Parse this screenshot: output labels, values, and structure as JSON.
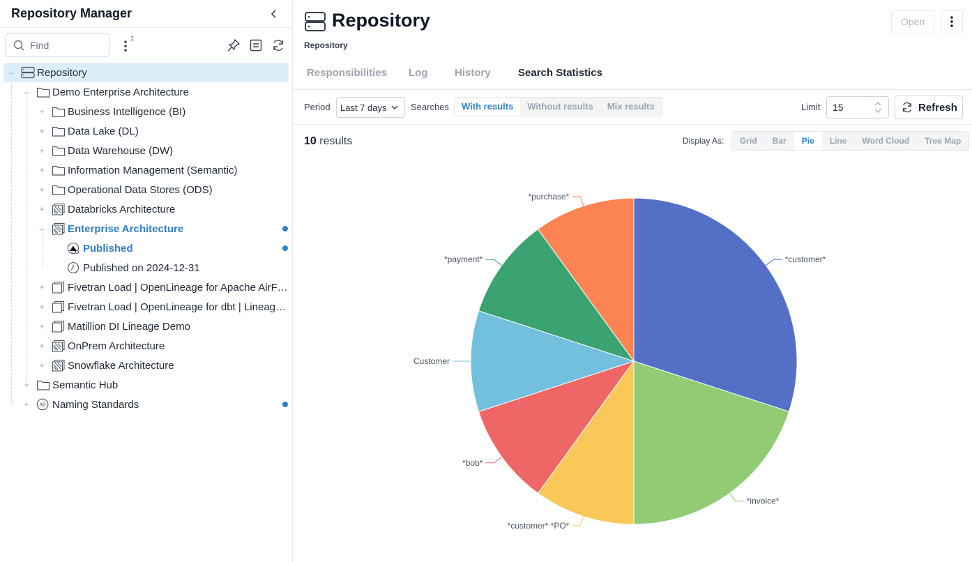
{
  "sidebar": {
    "title": "Repository Manager",
    "find_placeholder": "Find",
    "menu_badge": "1",
    "tree": [
      {
        "label": "Repository",
        "icon": "repository-icon",
        "selected": true
      },
      {
        "label": "Demo Enterprise Architecture",
        "icon": "folder-icon"
      },
      {
        "label": "Business Intelligence (BI)",
        "icon": "folder-icon"
      },
      {
        "label": "Data Lake (DL)",
        "icon": "folder-icon"
      },
      {
        "label": "Data Warehouse (DW)",
        "icon": "folder-icon"
      },
      {
        "label": "Information Management (Semantic)",
        "icon": "folder-icon"
      },
      {
        "label": "Operational Data Stores (ODS)",
        "icon": "folder-icon"
      },
      {
        "label": "Databricks Architecture",
        "icon": "model-icon"
      },
      {
        "label": "Enterprise Architecture",
        "icon": "model-icon",
        "highlight": true,
        "dot": true
      },
      {
        "label": "Published",
        "icon": "published-icon",
        "highlight": true,
        "dot": true
      },
      {
        "label": "Published on 2024-12-31",
        "icon": "clock-icon"
      },
      {
        "label": "Fivetran Load | OpenLineage for Apache AirFl...",
        "icon": "document-icon"
      },
      {
        "label": "Fivetran Load | OpenLineage for dbt | Lineage...",
        "icon": "document-icon"
      },
      {
        "label": "Matillion DI Lineage Demo",
        "icon": "document-icon"
      },
      {
        "label": "OnPrem Architecture",
        "icon": "model-icon"
      },
      {
        "label": "Snowflake Architecture",
        "icon": "model-icon"
      },
      {
        "label": "Semantic Hub",
        "icon": "folder-icon"
      },
      {
        "label": "Naming Standards",
        "icon": "naming-standards-icon",
        "dot": true
      }
    ]
  },
  "header": {
    "title": "Repository",
    "subtitle": "Repository",
    "open_label": "Open"
  },
  "tabs": [
    {
      "label": "Responsibilities",
      "active": false
    },
    {
      "label": "Log",
      "active": false
    },
    {
      "label": "History",
      "active": false
    },
    {
      "label": "Search Statistics",
      "active": true
    }
  ],
  "filters": {
    "period_label": "Period",
    "period_value": "Last 7 days",
    "searches_label": "Searches",
    "search_modes": [
      {
        "label": "With results",
        "active": true
      },
      {
        "label": "Without results",
        "active": false
      },
      {
        "label": "Mix results",
        "active": false
      }
    ],
    "limit_label": "Limit",
    "limit_value": "15",
    "refresh_label": "Refresh"
  },
  "results": {
    "count": "10",
    "suffix": "results",
    "display_as_label": "Display As:",
    "display_modes": [
      {
        "label": "Grid",
        "active": false
      },
      {
        "label": "Bar",
        "active": false
      },
      {
        "label": "Pie",
        "active": true
      },
      {
        "label": "Line",
        "active": false
      },
      {
        "label": "Word Cloud",
        "active": false
      },
      {
        "label": "Tree Map",
        "active": false
      }
    ]
  },
  "chart_data": {
    "type": "pie",
    "title": "",
    "categories": [
      "*customer*",
      "*invoice*",
      "*customer* *PO*",
      "*bob*",
      "Customer",
      "*payment*",
      "*purchase*"
    ],
    "values": [
      3,
      2,
      1,
      1,
      1,
      1,
      1
    ],
    "colors": [
      "#5470c6",
      "#91cc75",
      "#fac858",
      "#ee6666",
      "#73c0de",
      "#3ba272",
      "#fc8452"
    ]
  }
}
